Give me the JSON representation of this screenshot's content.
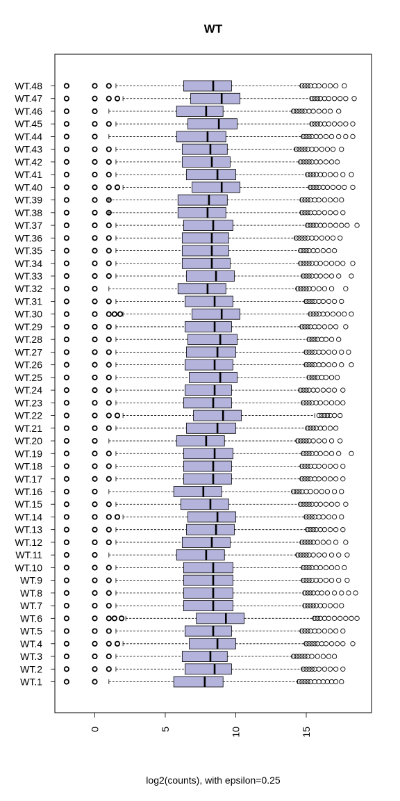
{
  "chart_data": {
    "type": "boxplot",
    "orientation": "horizontal",
    "title": "WT",
    "xlabel": "log2(counts), with epsilon=0.25",
    "ylabel": "",
    "xlim": [
      -2.8,
      19.5
    ],
    "xticks": [
      0,
      5,
      10,
      15
    ],
    "colors": {
      "box_fill": "#b3b3dc",
      "stroke": "#000000"
    },
    "categories": [
      "WT.1",
      "WT.2",
      "WT.3",
      "WT.4",
      "WT.5",
      "WT.6",
      "WT.7",
      "WT.8",
      "WT.9",
      "WT.10",
      "WT.11",
      "WT.12",
      "WT.13",
      "WT.14",
      "WT.15",
      "WT.16",
      "WT.17",
      "WT.18",
      "WT.19",
      "WT.20",
      "WT.21",
      "WT.22",
      "WT.23",
      "WT.24",
      "WT.25",
      "WT.26",
      "WT.27",
      "WT.28",
      "WT.29",
      "WT.30",
      "WT.31",
      "WT.32",
      "WT.33",
      "WT.34",
      "WT.35",
      "WT.36",
      "WT.37",
      "WT.38",
      "WT.39",
      "WT.40",
      "WT.41",
      "WT.42",
      "WT.43",
      "WT.44",
      "WT.45",
      "WT.46",
      "WT.47",
      "WT.48"
    ],
    "boxes": [
      {
        "q1": 5.6,
        "median": 7.8,
        "q3": 9.1,
        "wlo": 1.0,
        "whi": 14.4,
        "outlo": [
          -2.0,
          0.0
        ],
        "outhi": [
          14.5,
          14.7,
          14.9,
          15.1,
          15.3,
          15.6,
          15.9,
          16.2,
          16.5,
          16.8,
          17.1,
          17.5
        ]
      },
      {
        "q1": 6.4,
        "median": 8.5,
        "q3": 9.7,
        "wlo": 1.5,
        "whi": 14.7,
        "outlo": [
          -2.0,
          0.0,
          1.0
        ],
        "outhi": [
          14.8,
          15.0,
          15.2,
          15.4,
          15.6,
          15.9,
          16.3,
          16.7,
          17.1,
          17.6
        ]
      },
      {
        "q1": 6.2,
        "median": 8.2,
        "q3": 9.4,
        "wlo": 1.5,
        "whi": 14.0,
        "outlo": [
          -2.0,
          0.0,
          1.0
        ],
        "outhi": [
          14.1,
          14.3,
          14.5,
          14.7,
          14.9,
          15.1,
          15.4,
          15.8,
          16.2,
          16.6,
          17.0
        ]
      },
      {
        "q1": 6.7,
        "median": 8.7,
        "q3": 10.0,
        "wlo": 2.0,
        "whi": 14.9,
        "outlo": [
          -2.0,
          0.0,
          1.0,
          1.6
        ],
        "outhi": [
          15.0,
          15.2,
          15.4,
          15.6,
          15.8,
          16.1,
          16.4,
          16.8,
          17.2,
          17.6,
          18.3
        ]
      },
      {
        "q1": 6.4,
        "median": 8.4,
        "q3": 9.7,
        "wlo": 1.5,
        "whi": 14.6,
        "outlo": [
          -2.0,
          0.0,
          1.0
        ],
        "outhi": [
          14.7,
          14.9,
          15.1,
          15.3,
          15.6,
          15.9,
          16.3,
          16.7,
          17.1,
          17.6
        ]
      },
      {
        "q1": 7.2,
        "median": 9.3,
        "q3": 10.6,
        "wlo": 2.2,
        "whi": 15.5,
        "outlo": [
          -2.0,
          0.0,
          1.0,
          1.4,
          1.9
        ],
        "outhi": [
          15.6,
          15.8,
          16.0,
          16.3,
          16.6,
          17.0,
          17.4,
          17.8,
          18.2,
          18.6
        ]
      },
      {
        "q1": 6.3,
        "median": 8.4,
        "q3": 9.8,
        "wlo": 1.5,
        "whi": 14.8,
        "outlo": [
          -2.0,
          0.0,
          1.0
        ],
        "outhi": [
          14.9,
          15.1,
          15.3,
          15.5,
          15.7,
          16.0,
          16.3,
          16.7,
          17.1,
          17.5
        ]
      },
      {
        "q1": 6.3,
        "median": 8.4,
        "q3": 9.8,
        "wlo": 1.5,
        "whi": 14.8,
        "outlo": [
          -2.0,
          0.0,
          1.0
        ],
        "outhi": [
          14.9,
          15.1,
          15.3,
          15.5,
          15.8,
          16.1,
          16.5,
          17.0,
          17.5,
          18.0,
          18.5
        ]
      },
      {
        "q1": 6.3,
        "median": 8.4,
        "q3": 9.8,
        "wlo": 1.5,
        "whi": 14.7,
        "outlo": [
          -2.0,
          0.0,
          1.0
        ],
        "outhi": [
          14.8,
          15.0,
          15.2,
          15.4,
          15.7,
          16.0,
          16.4,
          16.8,
          17.3,
          17.9
        ]
      },
      {
        "q1": 6.3,
        "median": 8.4,
        "q3": 9.8,
        "wlo": 1.5,
        "whi": 14.7,
        "outlo": [
          -2.0,
          0.0,
          1.0
        ],
        "outhi": [
          14.8,
          15.0,
          15.2,
          15.4,
          15.7,
          16.0,
          16.4,
          16.8,
          17.2,
          17.7
        ]
      },
      {
        "q1": 5.8,
        "median": 7.9,
        "q3": 9.2,
        "wlo": 1.0,
        "whi": 14.3,
        "outlo": [
          -2.0,
          0.0
        ],
        "outhi": [
          14.4,
          14.6,
          14.8,
          15.0,
          15.2,
          15.5,
          15.9,
          16.3,
          16.8,
          17.3,
          17.9
        ]
      },
      {
        "q1": 6.2,
        "median": 8.3,
        "q3": 9.6,
        "wlo": 1.5,
        "whi": 14.6,
        "outlo": [
          -2.0,
          0.0,
          1.0
        ],
        "outhi": [
          14.7,
          14.9,
          15.1,
          15.3,
          15.5,
          15.8,
          16.2,
          16.6,
          17.1,
          17.8
        ]
      },
      {
        "q1": 6.5,
        "median": 8.6,
        "q3": 9.9,
        "wlo": 1.5,
        "whi": 15.0,
        "outlo": [
          -2.0,
          0.0,
          1.0
        ],
        "outhi": [
          15.1,
          15.3,
          15.5,
          15.7,
          16.0,
          16.3,
          16.7,
          17.1,
          17.6
        ]
      },
      {
        "q1": 6.6,
        "median": 8.7,
        "q3": 10.0,
        "wlo": 2.0,
        "whi": 14.9,
        "outlo": [
          -2.0,
          0.0,
          1.0,
          1.6
        ],
        "outhi": [
          15.0,
          15.2,
          15.4,
          15.6,
          15.9,
          16.2,
          16.6,
          17.0,
          17.5
        ]
      },
      {
        "q1": 6.1,
        "median": 8.2,
        "q3": 9.5,
        "wlo": 1.5,
        "whi": 14.5,
        "outlo": [
          -2.0,
          0.0,
          1.0
        ],
        "outhi": [
          14.6,
          14.8,
          15.0,
          15.2,
          15.4,
          15.7,
          16.0,
          16.4,
          16.8,
          17.2,
          17.8
        ]
      },
      {
        "q1": 5.6,
        "median": 7.7,
        "q3": 9.0,
        "wlo": 1.0,
        "whi": 14.0,
        "outlo": [
          -2.0,
          0.0
        ],
        "outhi": [
          14.1,
          14.3,
          14.5,
          14.7,
          15.0,
          15.3,
          15.7,
          16.1,
          16.5,
          17.0,
          17.5
        ]
      },
      {
        "q1": 6.3,
        "median": 8.4,
        "q3": 9.7,
        "wlo": 1.5,
        "whi": 14.6,
        "outlo": [
          -2.0,
          0.0,
          1.0
        ],
        "outhi": [
          14.7,
          14.9,
          15.1,
          15.3,
          15.6,
          15.9,
          16.3,
          16.7,
          17.1,
          17.6
        ]
      },
      {
        "q1": 6.3,
        "median": 8.4,
        "q3": 9.7,
        "wlo": 1.5,
        "whi": 14.6,
        "outlo": [
          -2.0,
          0.0,
          1.0
        ],
        "outhi": [
          14.7,
          14.9,
          15.1,
          15.3,
          15.6,
          15.9,
          16.3,
          16.7,
          17.1,
          17.6
        ]
      },
      {
        "q1": 6.3,
        "median": 8.5,
        "q3": 9.8,
        "wlo": 1.5,
        "whi": 14.7,
        "outlo": [
          -2.0,
          0.0,
          1.0
        ],
        "outhi": [
          14.8,
          15.0,
          15.2,
          15.4,
          15.7,
          16.0,
          16.4,
          16.8,
          17.3,
          18.2
        ]
      },
      {
        "q1": 5.8,
        "median": 7.9,
        "q3": 9.2,
        "wlo": 1.0,
        "whi": 14.3,
        "outlo": [
          -2.0,
          0.0
        ],
        "outhi": [
          14.4,
          14.6,
          14.8,
          15.0,
          15.2,
          15.5,
          15.9,
          16.3,
          16.8,
          17.4
        ]
      },
      {
        "q1": 6.5,
        "median": 8.7,
        "q3": 10.0,
        "wlo": 1.5,
        "whi": 15.0,
        "outlo": [
          -2.0,
          0.0,
          1.0
        ],
        "outhi": [
          15.1,
          15.3,
          15.5,
          15.7,
          16.0,
          16.3,
          16.7,
          17.1
        ]
      },
      {
        "q1": 7.0,
        "median": 9.1,
        "q3": 10.4,
        "wlo": 2.0,
        "whi": 15.6,
        "outlo": [
          -2.0,
          0.0,
          1.0,
          1.6
        ],
        "outhi": [
          15.9,
          16.1,
          16.3,
          16.5,
          16.7,
          17.0,
          17.4
        ]
      },
      {
        "q1": 6.3,
        "median": 8.4,
        "q3": 9.7,
        "wlo": 1.5,
        "whi": 14.7,
        "outlo": [
          -2.0,
          0.0,
          1.0
        ],
        "outhi": [
          14.8,
          15.0,
          15.2,
          15.4,
          15.7,
          16.0,
          16.4,
          16.8,
          17.2,
          17.6
        ]
      },
      {
        "q1": 6.4,
        "median": 8.5,
        "q3": 9.7,
        "wlo": 1.5,
        "whi": 14.5,
        "outlo": [
          -2.0,
          0.0,
          1.0
        ],
        "outhi": [
          14.6,
          14.8,
          15.0,
          15.2,
          15.5,
          15.8,
          16.2,
          16.6,
          17.0,
          17.6
        ]
      },
      {
        "q1": 6.7,
        "median": 8.9,
        "q3": 10.1,
        "wlo": 1.5,
        "whi": 15.1,
        "outlo": [
          -2.0,
          0.0,
          1.0
        ],
        "outhi": [
          15.2,
          15.4,
          15.6,
          15.8,
          16.1,
          16.4,
          16.8,
          17.2
        ]
      },
      {
        "q1": 6.4,
        "median": 8.5,
        "q3": 9.8,
        "wlo": 1.5,
        "whi": 14.9,
        "outlo": [
          -2.0,
          0.0,
          1.0
        ],
        "outhi": [
          15.0,
          15.2,
          15.4,
          15.6,
          15.9,
          16.2,
          16.6,
          17.0,
          17.5,
          18.2
        ]
      },
      {
        "q1": 6.5,
        "median": 8.7,
        "q3": 10.0,
        "wlo": 1.5,
        "whi": 14.9,
        "outlo": [
          -2.0,
          0.0,
          1.0
        ],
        "outhi": [
          15.0,
          15.2,
          15.4,
          15.6,
          15.9,
          16.2,
          16.6,
          17.0,
          17.5,
          18.0
        ]
      },
      {
        "q1": 6.6,
        "median": 8.9,
        "q3": 10.1,
        "wlo": 1.5,
        "whi": 15.1,
        "outlo": [
          -2.0,
          0.0,
          1.0
        ],
        "outhi": [
          15.2,
          15.4,
          15.6,
          15.8,
          16.1,
          16.4,
          16.8,
          17.3
        ]
      },
      {
        "q1": 6.4,
        "median": 8.5,
        "q3": 9.7,
        "wlo": 1.5,
        "whi": 14.6,
        "outlo": [
          -2.0,
          0.0,
          1.0
        ],
        "outhi": [
          14.7,
          14.9,
          15.1,
          15.3,
          15.6,
          15.9,
          16.3,
          16.7,
          17.1,
          17.8
        ]
      },
      {
        "q1": 6.9,
        "median": 9.0,
        "q3": 10.3,
        "wlo": 2.0,
        "whi": 15.2,
        "outlo": [
          -2.0,
          0.0,
          1.0,
          1.4,
          1.8
        ],
        "outhi": [
          15.3,
          15.5,
          15.7,
          15.9,
          16.2,
          16.5,
          16.9,
          17.3,
          17.7,
          18.2
        ]
      },
      {
        "q1": 6.4,
        "median": 8.5,
        "q3": 9.8,
        "wlo": 1.5,
        "whi": 14.9,
        "outlo": [
          -2.0,
          0.0,
          1.0
        ],
        "outhi": [
          15.0,
          15.2,
          15.4,
          15.6,
          15.9,
          16.2,
          16.6,
          17.0,
          17.5
        ]
      },
      {
        "q1": 5.9,
        "median": 8.0,
        "q3": 9.3,
        "wlo": 1.0,
        "whi": 14.3,
        "outlo": [
          -2.0,
          0.0
        ],
        "outhi": [
          14.4,
          14.6,
          14.8,
          15.0,
          15.2,
          15.5,
          15.9,
          16.3,
          16.8,
          17.8
        ]
      },
      {
        "q1": 6.5,
        "median": 8.6,
        "q3": 9.9,
        "wlo": 1.5,
        "whi": 14.7,
        "outlo": [
          -2.0,
          0.0,
          1.0
        ],
        "outhi": [
          14.8,
          15.0,
          15.2,
          15.4,
          15.7,
          16.0,
          16.4,
          16.8,
          17.3,
          18.2
        ]
      },
      {
        "q1": 6.2,
        "median": 8.3,
        "q3": 9.6,
        "wlo": 1.5,
        "whi": 14.5,
        "outlo": [
          -2.0,
          0.0,
          1.0
        ],
        "outhi": [
          14.6,
          14.8,
          15.0,
          15.2,
          15.4,
          15.7,
          16.0,
          16.4,
          16.8,
          17.2,
          17.6,
          18.3
        ]
      },
      {
        "q1": 6.2,
        "median": 8.3,
        "q3": 9.5,
        "wlo": 1.5,
        "whi": 14.5,
        "outlo": [
          -2.0,
          0.0,
          1.0
        ],
        "outhi": [
          14.6,
          14.8,
          15.0,
          15.2,
          15.5,
          15.8,
          16.2,
          16.6,
          17.0
        ]
      },
      {
        "q1": 6.2,
        "median": 8.3,
        "q3": 9.5,
        "wlo": 1.5,
        "whi": 14.2,
        "outlo": [
          -2.0,
          0.0,
          1.0
        ],
        "outhi": [
          14.3,
          14.5,
          14.7,
          14.9,
          15.1,
          15.4,
          15.7,
          16.1,
          16.5,
          16.9,
          17.4
        ]
      },
      {
        "q1": 6.3,
        "median": 8.4,
        "q3": 9.8,
        "wlo": 1.5,
        "whi": 15.0,
        "outlo": [
          -2.0,
          0.0,
          1.0
        ],
        "outhi": [
          15.1,
          15.3,
          15.5,
          15.7,
          16.0,
          16.3,
          16.7,
          17.1,
          17.5,
          17.9,
          18.6
        ]
      },
      {
        "q1": 5.9,
        "median": 8.0,
        "q3": 9.3,
        "wlo": 1.0,
        "whi": 14.6,
        "outlo": [
          -2.0,
          0.0,
          1.0
        ],
        "outhi": [
          14.7,
          14.9,
          15.1,
          15.3,
          15.6,
          15.9,
          16.3,
          16.7,
          17.1,
          17.6
        ]
      },
      {
        "q1": 5.9,
        "median": 8.1,
        "q3": 9.4,
        "wlo": 1.0,
        "whi": 14.6,
        "outlo": [
          -2.0,
          0.0,
          1.0
        ],
        "outhi": [
          14.7,
          14.9,
          15.1,
          15.3,
          15.6,
          15.9,
          16.3,
          16.7,
          17.1,
          17.5
        ]
      },
      {
        "q1": 6.9,
        "median": 9.0,
        "q3": 10.3,
        "wlo": 2.0,
        "whi": 15.2,
        "outlo": [
          -2.0,
          0.0,
          1.0,
          1.6
        ],
        "outhi": [
          15.3,
          15.5,
          15.7,
          15.9,
          16.2,
          16.5,
          16.9,
          17.3,
          17.7,
          18.3
        ]
      },
      {
        "q1": 6.5,
        "median": 8.7,
        "q3": 10.0,
        "wlo": 1.5,
        "whi": 15.0,
        "outlo": [
          -2.0,
          0.0,
          1.0
        ],
        "outhi": [
          15.1,
          15.3,
          15.5,
          15.7,
          16.0,
          16.3,
          16.7,
          17.1,
          17.6,
          18.2
        ]
      },
      {
        "q1": 6.2,
        "median": 8.3,
        "q3": 9.6,
        "wlo": 1.5,
        "whi": 14.5,
        "outlo": [
          -2.0,
          0.0,
          1.0
        ],
        "outhi": [
          14.6,
          14.8,
          15.0,
          15.2,
          15.4,
          15.7,
          16.0,
          16.4,
          16.8,
          17.2
        ]
      },
      {
        "q1": 6.2,
        "median": 8.2,
        "q3": 9.4,
        "wlo": 1.5,
        "whi": 14.2,
        "outlo": [
          -2.0,
          0.0,
          1.0
        ],
        "outhi": [
          14.3,
          14.5,
          14.7,
          14.9,
          15.1,
          15.4,
          15.7,
          16.1,
          16.5,
          16.9,
          17.5
        ]
      },
      {
        "q1": 5.8,
        "median": 8.0,
        "q3": 9.3,
        "wlo": 1.0,
        "whi": 14.7,
        "outlo": [
          -2.0,
          0.0
        ],
        "outhi": [
          14.8,
          15.0,
          15.2,
          15.4,
          15.7,
          16.0,
          16.4,
          16.8,
          17.3,
          17.8,
          18.3
        ]
      },
      {
        "q1": 6.6,
        "median": 8.8,
        "q3": 10.1,
        "wlo": 1.5,
        "whi": 15.3,
        "outlo": [
          -2.0,
          0.0,
          1.0
        ],
        "outhi": [
          15.4,
          15.6,
          15.8,
          16.0,
          16.3,
          16.6,
          17.0,
          17.4,
          17.8,
          18.3
        ]
      },
      {
        "q1": 5.8,
        "median": 7.9,
        "q3": 9.1,
        "wlo": 1.0,
        "whi": 14.0,
        "outlo": [
          -2.0,
          0.0
        ],
        "outhi": [
          14.1,
          14.3,
          14.5,
          14.7,
          14.9,
          15.2,
          15.5,
          15.9,
          16.3,
          16.7,
          17.3
        ]
      },
      {
        "q1": 6.8,
        "median": 9.0,
        "q3": 10.3,
        "wlo": 2.0,
        "whi": 15.3,
        "outlo": [
          -2.0,
          0.0,
          1.0,
          1.6
        ],
        "outhi": [
          15.4,
          15.6,
          15.8,
          16.0,
          16.3,
          16.6,
          17.0,
          17.4,
          17.8,
          18.4
        ]
      },
      {
        "q1": 6.3,
        "median": 8.4,
        "q3": 9.7,
        "wlo": 1.5,
        "whi": 14.6,
        "outlo": [
          -2.0,
          0.0,
          1.0
        ],
        "outhi": [
          14.7,
          14.9,
          15.1,
          15.3,
          15.6,
          15.9,
          16.3,
          16.7,
          17.1,
          17.7
        ]
      }
    ]
  }
}
